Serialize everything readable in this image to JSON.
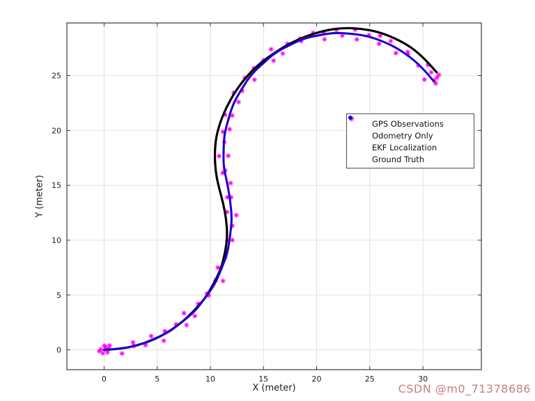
{
  "figure": {
    "watermark": "CSDN @m0_71378686",
    "background": "#ffffff"
  },
  "chart_data": {
    "type": "scatter",
    "title": "",
    "xlabel": "X (meter)",
    "ylabel": "Y (meter)",
    "xlim": [
      -3.5,
      35.5
    ],
    "ylim": [
      -1.8,
      29.8
    ],
    "xticks": [
      0,
      5,
      10,
      15,
      20,
      25,
      30
    ],
    "yticks": [
      0,
      5,
      10,
      15,
      20,
      25
    ],
    "grid": true,
    "grid_color": "#e2e2e2",
    "box_color": "#262626",
    "legend_position": "inside-upper-right",
    "series": [
      {
        "name": "GPS Observations",
        "type": "scatter",
        "marker": "asterisk",
        "color": "#ff00ff",
        "points": [
          [
            0.32,
            -0.22
          ],
          [
            0.51,
            0.4
          ],
          [
            1.69,
            -0.32
          ],
          [
            2.79,
            0.36
          ],
          [
            2.73,
            0.69
          ],
          [
            3.9,
            0.44
          ],
          [
            4.44,
            1.26
          ],
          [
            5.62,
            0.84
          ],
          [
            5.72,
            1.71
          ],
          [
            6.78,
            2.33
          ],
          [
            7.76,
            2.26
          ],
          [
            7.52,
            3.35
          ],
          [
            8.54,
            3.09
          ],
          [
            8.86,
            4.2
          ],
          [
            9.84,
            4.97
          ],
          [
            9.68,
            5.13
          ],
          [
            10.51,
            6.35
          ],
          [
            11.19,
            6.29
          ],
          [
            10.71,
            7.51
          ],
          [
            11.39,
            8.43
          ],
          [
            11.44,
            8.67
          ],
          [
            12.07,
            10.01
          ],
          [
            11.62,
            10.01
          ],
          [
            12.07,
            11.32
          ],
          [
            12.45,
            12.28
          ],
          [
            11.57,
            12.57
          ],
          [
            11.95,
            13.92
          ],
          [
            11.6,
            13.92
          ],
          [
            11.91,
            15.21
          ],
          [
            11.16,
            16.13
          ],
          [
            11.4,
            16.36
          ],
          [
            11.69,
            17.69
          ],
          [
            10.82,
            17.67
          ],
          [
            11.32,
            18.95
          ],
          [
            11.18,
            19.88
          ],
          [
            11.82,
            20.12
          ],
          [
            11.39,
            21.43
          ],
          [
            12.06,
            21.37
          ],
          [
            12.66,
            22.6
          ],
          [
            12.2,
            23.45
          ],
          [
            12.99,
            23.61
          ],
          [
            13.24,
            24.79
          ],
          [
            14.15,
            24.62
          ],
          [
            14.09,
            25.68
          ],
          [
            15.02,
            26.4
          ],
          [
            15.95,
            26.37
          ],
          [
            15.72,
            27.4
          ],
          [
            16.81,
            27.01
          ],
          [
            17.26,
            27.9
          ],
          [
            18.44,
            28.37
          ],
          [
            18.54,
            28.15
          ],
          [
            19.68,
            28.9
          ],
          [
            20.74,
            28.31
          ],
          [
            20.67,
            28.91
          ],
          [
            21.85,
            29.17
          ],
          [
            22.41,
            28.65
          ],
          [
            23.63,
            29.19
          ],
          [
            23.78,
            28.3
          ],
          [
            24.93,
            28.69
          ],
          [
            25.98,
            28.64
          ],
          [
            25.87,
            27.91
          ],
          [
            26.98,
            28.15
          ],
          [
            27.46,
            27.05
          ],
          [
            28.57,
            27.16
          ],
          [
            28.6,
            26.92
          ],
          [
            29.57,
            25.92
          ],
          [
            30.47,
            25.98
          ],
          [
            30.14,
            24.64
          ],
          [
            31.06,
            24.59
          ],
          [
            -0.3,
            0.05
          ],
          [
            0.15,
            0.25
          ],
          [
            -0.12,
            -0.3
          ],
          [
            0.42,
            0.12
          ],
          [
            -0.45,
            -0.12
          ],
          [
            0.02,
            0.38
          ],
          [
            31.32,
            24.82
          ],
          [
            30.78,
            25.3
          ],
          [
            31.5,
            25.08
          ],
          [
            31.2,
            24.3
          ]
        ]
      },
      {
        "name": "Odometry Only",
        "type": "line",
        "marker": "dot",
        "color": "#000000",
        "width": 3.2,
        "points": [
          [
            0,
            0
          ],
          [
            1.6,
            0.1
          ],
          [
            3.1,
            0.4
          ],
          [
            4.6,
            0.9
          ],
          [
            6,
            1.6
          ],
          [
            7.3,
            2.5
          ],
          [
            8.4,
            3.5
          ],
          [
            9.5,
            4.7
          ],
          [
            10.3,
            6
          ],
          [
            11,
            7.4
          ],
          [
            11.4,
            8.9
          ],
          [
            11.6,
            10.4
          ],
          [
            11.5,
            11.9
          ],
          [
            11.2,
            13.4
          ],
          [
            10.8,
            14.8
          ],
          [
            10.5,
            16.2
          ],
          [
            10.4,
            17.7
          ],
          [
            10.5,
            19.2
          ],
          [
            10.9,
            20.7
          ],
          [
            11.5,
            22.1
          ],
          [
            12.3,
            23.5
          ],
          [
            13.3,
            24.8
          ],
          [
            14.5,
            26
          ],
          [
            15.9,
            27
          ],
          [
            17.4,
            27.9
          ],
          [
            19,
            28.6
          ],
          [
            20.7,
            29.1
          ],
          [
            22.4,
            29.35
          ],
          [
            24.1,
            29.3
          ],
          [
            25.8,
            29
          ],
          [
            27.4,
            28.4
          ],
          [
            28.9,
            27.6
          ],
          [
            30.2,
            26.5
          ],
          [
            31.3,
            25.3
          ]
        ]
      },
      {
        "name": "EKF Localization",
        "type": "line",
        "marker": "dot",
        "color": "#dd1111",
        "width": 3,
        "points": [
          [
            0.06,
            -0.04
          ],
          [
            1.52,
            0.15
          ],
          [
            3.17,
            0.37
          ],
          [
            4.54,
            0.96
          ],
          [
            6.06,
            1.57
          ],
          [
            7.26,
            2.53
          ],
          [
            8.55,
            3.47
          ],
          [
            9.47,
            4.74
          ],
          [
            10.45,
            5.96
          ],
          [
            11.04,
            7.46
          ],
          [
            11.65,
            8.85
          ],
          [
            11.85,
            10.48
          ],
          [
            12.06,
            11.96
          ],
          [
            11.85,
            13.62
          ],
          [
            11.65,
            15.07
          ],
          [
            11.23,
            16.63
          ],
          [
            11.26,
            18.05
          ],
          [
            11.28,
            19.65
          ],
          [
            11.73,
            21.04
          ],
          [
            12.16,
            22.55
          ],
          [
            13,
            23.79
          ],
          [
            13.78,
            25.09
          ],
          [
            14.96,
            26.08
          ],
          [
            16.05,
            27.1
          ],
          [
            17.47,
            27.76
          ],
          [
            18.77,
            28.42
          ],
          [
            20.35,
            28.69
          ],
          [
            21.75,
            28.94
          ],
          [
            23.37,
            28.8
          ],
          [
            24.76,
            28.64
          ],
          [
            26.31,
            28.09
          ],
          [
            27.56,
            27.52
          ],
          [
            28.94,
            26.6
          ],
          [
            29.97,
            25.68
          ],
          [
            31.07,
            24.45
          ]
        ]
      },
      {
        "name": "Ground Truth",
        "type": "line",
        "marker": "dot",
        "color": "#0000ee",
        "width": 2.6,
        "points": [
          [
            0,
            0
          ],
          [
            1.57,
            0.1
          ],
          [
            3.11,
            0.41
          ],
          [
            4.59,
            0.91
          ],
          [
            6,
            1.61
          ],
          [
            7.31,
            2.48
          ],
          [
            8.49,
            3.51
          ],
          [
            9.52,
            4.69
          ],
          [
            10.39,
            6
          ],
          [
            11.09,
            7.41
          ],
          [
            11.59,
            8.89
          ],
          [
            11.9,
            10.43
          ],
          [
            12,
            12
          ],
          [
            11.9,
            13.57
          ],
          [
            11.59,
            15.11
          ],
          [
            11.28,
            16.58
          ],
          [
            11.2,
            18.09
          ],
          [
            11.33,
            19.6
          ],
          [
            11.67,
            21.08
          ],
          [
            12.21,
            22.5
          ],
          [
            12.94,
            23.83
          ],
          [
            13.83,
            25.04
          ],
          [
            14.9,
            26.12
          ],
          [
            16.1,
            27.05
          ],
          [
            17.41,
            27.8
          ],
          [
            18.82,
            28.37
          ],
          [
            20.29,
            28.73
          ],
          [
            21.8,
            28.89
          ],
          [
            23.31,
            28.84
          ],
          [
            24.81,
            28.59
          ],
          [
            26.25,
            28.13
          ],
          [
            27.61,
            27.47
          ],
          [
            28.88,
            26.64
          ],
          [
            30.02,
            25.63
          ],
          [
            31.01,
            24.49
          ]
        ]
      }
    ]
  }
}
